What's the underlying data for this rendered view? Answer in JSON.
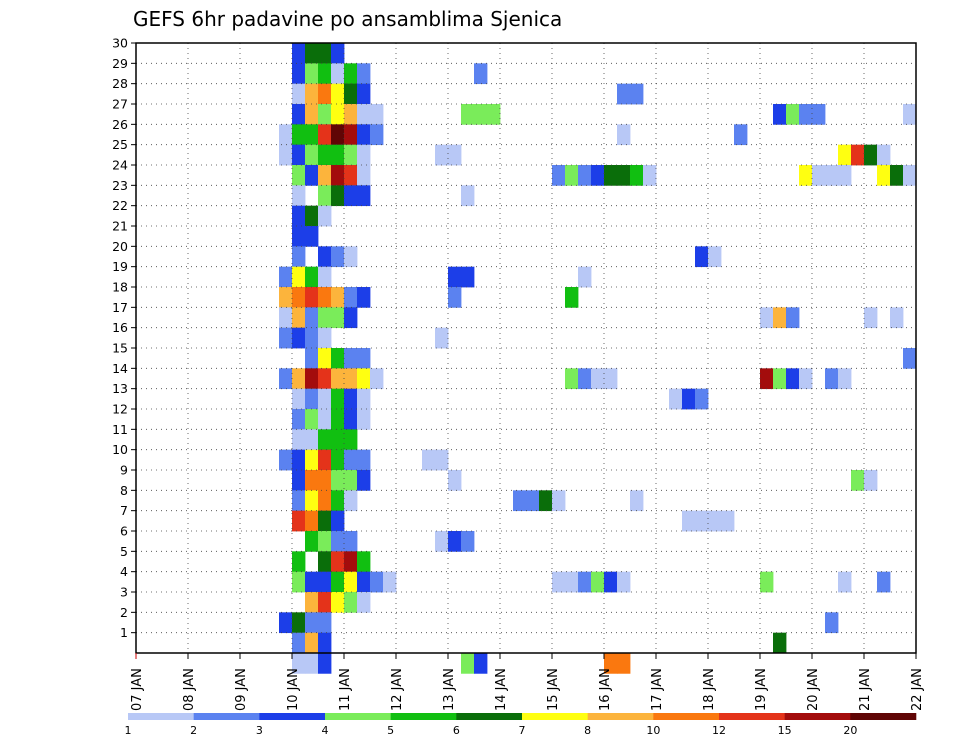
{
  "chart_data": {
    "type": "heatmap",
    "title": "GEFS 6hr padavine po ansamblima Sjenica",
    "x_tick_labels": [
      "07 JAN",
      "08 JAN",
      "09 JAN",
      "10 JAN",
      "11 JAN",
      "12 JAN",
      "13 JAN",
      "14 JAN",
      "15 JAN",
      "16 JAN",
      "17 JAN",
      "18 JAN",
      "19 JAN",
      "20 JAN",
      "21 JAN",
      "22 JAN"
    ],
    "y_tick_labels": [
      "1",
      "2",
      "3",
      "4",
      "5",
      "6",
      "7",
      "8",
      "9",
      "10",
      "11",
      "12",
      "13",
      "14",
      "15",
      "16",
      "17",
      "18",
      "19",
      "20",
      "21",
      "22",
      "23",
      "24",
      "25",
      "26",
      "27",
      "28",
      "29",
      "30"
    ],
    "xlim": [
      0,
      60
    ],
    "ylim": [
      0,
      30
    ],
    "grid": true,
    "colorbar": {
      "levels": [
        1,
        2,
        3,
        4,
        5,
        6,
        7,
        8,
        10,
        12,
        15,
        20
      ],
      "labels": [
        "1",
        "2",
        "3",
        "4",
        "5",
        "6",
        "7",
        "8",
        "10",
        "12",
        "15",
        "20"
      ],
      "colors": [
        "#b8c8f6",
        "#5b82f0",
        "#1c3ee8",
        "#7aec5a",
        "#11bf11",
        "#0a6e0a",
        "#ffff11",
        "#fcb43c",
        "#fa780f",
        "#e4331a",
        "#a30c0c",
        "#600505"
      ]
    },
    "cells": [
      [
        12,
        29,
        2
      ],
      [
        13,
        29,
        5
      ],
      [
        14,
        29,
        5
      ],
      [
        15,
        29,
        2
      ],
      [
        12,
        28,
        2
      ],
      [
        13,
        28,
        3
      ],
      [
        14,
        28,
        4
      ],
      [
        15,
        28,
        0
      ],
      [
        16,
        28,
        4
      ],
      [
        17,
        28,
        1
      ],
      [
        26,
        28,
        1
      ],
      [
        12,
        27,
        0
      ],
      [
        13,
        27,
        7
      ],
      [
        14,
        27,
        8
      ],
      [
        15,
        27,
        6
      ],
      [
        16,
        27,
        5
      ],
      [
        17,
        27,
        2
      ],
      [
        37,
        27,
        1
      ],
      [
        38,
        27,
        1
      ],
      [
        12,
        26,
        2
      ],
      [
        13,
        26,
        7
      ],
      [
        14,
        26,
        3
      ],
      [
        15,
        26,
        6
      ],
      [
        16,
        26,
        7
      ],
      [
        17,
        26,
        0
      ],
      [
        18,
        26,
        0
      ],
      [
        25,
        26,
        3
      ],
      [
        26,
        26,
        3
      ],
      [
        27,
        26,
        3
      ],
      [
        49,
        26,
        2
      ],
      [
        50,
        26,
        3
      ],
      [
        51,
        26,
        1
      ],
      [
        52,
        26,
        1
      ],
      [
        59,
        26,
        0
      ],
      [
        11,
        25,
        0
      ],
      [
        12,
        25,
        4
      ],
      [
        13,
        25,
        4
      ],
      [
        14,
        25,
        9
      ],
      [
        15,
        25,
        11
      ],
      [
        16,
        25,
        10
      ],
      [
        17,
        25,
        2
      ],
      [
        18,
        25,
        1
      ],
      [
        37,
        25,
        0
      ],
      [
        46,
        25,
        1
      ],
      [
        11,
        24,
        0
      ],
      [
        12,
        24,
        2
      ],
      [
        13,
        24,
        3
      ],
      [
        14,
        24,
        4
      ],
      [
        15,
        24,
        4
      ],
      [
        16,
        24,
        3
      ],
      [
        17,
        24,
        0
      ],
      [
        23,
        24,
        0
      ],
      [
        24,
        24,
        0
      ],
      [
        54,
        24,
        6
      ],
      [
        55,
        24,
        9
      ],
      [
        56,
        24,
        5
      ],
      [
        57,
        24,
        0
      ],
      [
        12,
        23,
        3
      ],
      [
        13,
        23,
        2
      ],
      [
        14,
        23,
        7
      ],
      [
        15,
        23,
        10
      ],
      [
        16,
        23,
        9
      ],
      [
        17,
        23,
        0
      ],
      [
        32,
        23,
        1
      ],
      [
        33,
        23,
        3
      ],
      [
        34,
        23,
        1
      ],
      [
        35,
        23,
        2
      ],
      [
        36,
        23,
        5
      ],
      [
        37,
        23,
        5
      ],
      [
        38,
        23,
        4
      ],
      [
        39,
        23,
        0
      ],
      [
        51,
        23,
        6
      ],
      [
        52,
        23,
        0
      ],
      [
        53,
        23,
        0
      ],
      [
        54,
        23,
        0
      ],
      [
        57,
        23,
        6
      ],
      [
        58,
        23,
        5
      ],
      [
        59,
        23,
        0
      ],
      [
        12,
        22,
        0
      ],
      [
        14,
        22,
        3
      ],
      [
        15,
        22,
        5
      ],
      [
        16,
        22,
        2
      ],
      [
        17,
        22,
        2
      ],
      [
        25,
        22,
        0
      ],
      [
        12,
        21,
        2
      ],
      [
        13,
        21,
        5
      ],
      [
        14,
        21,
        0
      ],
      [
        12,
        20,
        2
      ],
      [
        13,
        20,
        2
      ],
      [
        12,
        19,
        1
      ],
      [
        14,
        19,
        2
      ],
      [
        15,
        19,
        1
      ],
      [
        16,
        19,
        0
      ],
      [
        43,
        19,
        2
      ],
      [
        44,
        19,
        0
      ],
      [
        11,
        18,
        1
      ],
      [
        12,
        18,
        6
      ],
      [
        13,
        18,
        4
      ],
      [
        14,
        18,
        0
      ],
      [
        24,
        18,
        2
      ],
      [
        25,
        18,
        2
      ],
      [
        34,
        18,
        0
      ],
      [
        11,
        17,
        7
      ],
      [
        12,
        17,
        8
      ],
      [
        13,
        17,
        9
      ],
      [
        14,
        17,
        8
      ],
      [
        15,
        17,
        7
      ],
      [
        16,
        17,
        1
      ],
      [
        17,
        17,
        2
      ],
      [
        24,
        17,
        1
      ],
      [
        33,
        17,
        4
      ],
      [
        11,
        16,
        0
      ],
      [
        12,
        16,
        7
      ],
      [
        13,
        16,
        1
      ],
      [
        14,
        16,
        3
      ],
      [
        15,
        16,
        3
      ],
      [
        16,
        16,
        2
      ],
      [
        48,
        16,
        0
      ],
      [
        49,
        16,
        7
      ],
      [
        50,
        16,
        1
      ],
      [
        56,
        16,
        0
      ],
      [
        58,
        16,
        0
      ],
      [
        11,
        15,
        1
      ],
      [
        12,
        15,
        2
      ],
      [
        13,
        15,
        1
      ],
      [
        14,
        15,
        0
      ],
      [
        23,
        15,
        0
      ],
      [
        13,
        14,
        1
      ],
      [
        14,
        14,
        6
      ],
      [
        15,
        14,
        4
      ],
      [
        16,
        14,
        1
      ],
      [
        17,
        14,
        1
      ],
      [
        59,
        14,
        1
      ],
      [
        11,
        13,
        1
      ],
      [
        12,
        13,
        7
      ],
      [
        13,
        13,
        10
      ],
      [
        14,
        13,
        9
      ],
      [
        15,
        13,
        7
      ],
      [
        16,
        13,
        7
      ],
      [
        17,
        13,
        6
      ],
      [
        18,
        13,
        0
      ],
      [
        33,
        13,
        3
      ],
      [
        34,
        13,
        1
      ],
      [
        35,
        13,
        0
      ],
      [
        36,
        13,
        0
      ],
      [
        48,
        13,
        10
      ],
      [
        49,
        13,
        3
      ],
      [
        50,
        13,
        2
      ],
      [
        51,
        13,
        0
      ],
      [
        53,
        13,
        1
      ],
      [
        54,
        13,
        0
      ],
      [
        12,
        12,
        0
      ],
      [
        13,
        12,
        1
      ],
      [
        14,
        12,
        0
      ],
      [
        15,
        12,
        4
      ],
      [
        16,
        12,
        2
      ],
      [
        17,
        12,
        0
      ],
      [
        41,
        12,
        0
      ],
      [
        42,
        12,
        2
      ],
      [
        43,
        12,
        1
      ],
      [
        12,
        11,
        1
      ],
      [
        13,
        11,
        3
      ],
      [
        14,
        11,
        0
      ],
      [
        15,
        11,
        4
      ],
      [
        16,
        11,
        2
      ],
      [
        17,
        11,
        0
      ],
      [
        12,
        10,
        0
      ],
      [
        13,
        10,
        0
      ],
      [
        14,
        10,
        4
      ],
      [
        15,
        10,
        4
      ],
      [
        16,
        10,
        4
      ],
      [
        11,
        9,
        1
      ],
      [
        12,
        9,
        2
      ],
      [
        13,
        9,
        6
      ],
      [
        14,
        9,
        9
      ],
      [
        15,
        9,
        4
      ],
      [
        16,
        9,
        1
      ],
      [
        17,
        9,
        1
      ],
      [
        22,
        9,
        0
      ],
      [
        23,
        9,
        0
      ],
      [
        12,
        8,
        2
      ],
      [
        13,
        8,
        8
      ],
      [
        14,
        8,
        8
      ],
      [
        15,
        8,
        3
      ],
      [
        16,
        8,
        3
      ],
      [
        17,
        8,
        2
      ],
      [
        24,
        8,
        0
      ],
      [
        55,
        8,
        3
      ],
      [
        56,
        8,
        0
      ],
      [
        12,
        7,
        1
      ],
      [
        13,
        7,
        6
      ],
      [
        14,
        7,
        8
      ],
      [
        15,
        7,
        4
      ],
      [
        16,
        7,
        0
      ],
      [
        29,
        7,
        1
      ],
      [
        30,
        7,
        1
      ],
      [
        31,
        7,
        5
      ],
      [
        32,
        7,
        0
      ],
      [
        38,
        7,
        0
      ],
      [
        12,
        6,
        9
      ],
      [
        13,
        6,
        8
      ],
      [
        14,
        6,
        5
      ],
      [
        15,
        6,
        2
      ],
      [
        42,
        6,
        0
      ],
      [
        43,
        6,
        0
      ],
      [
        44,
        6,
        0
      ],
      [
        45,
        6,
        0
      ],
      [
        13,
        5,
        4
      ],
      [
        14,
        5,
        3
      ],
      [
        15,
        5,
        1
      ],
      [
        16,
        5,
        1
      ],
      [
        23,
        5,
        0
      ],
      [
        24,
        5,
        2
      ],
      [
        25,
        5,
        1
      ],
      [
        12,
        4,
        4
      ],
      [
        14,
        4,
        5
      ],
      [
        15,
        4,
        9
      ],
      [
        16,
        4,
        10
      ],
      [
        17,
        4,
        4
      ],
      [
        12,
        3,
        3
      ],
      [
        13,
        3,
        2
      ],
      [
        14,
        3,
        2
      ],
      [
        15,
        3,
        4
      ],
      [
        16,
        3,
        6
      ],
      [
        17,
        3,
        2
      ],
      [
        18,
        3,
        1
      ],
      [
        19,
        3,
        0
      ],
      [
        32,
        3,
        0
      ],
      [
        33,
        3,
        0
      ],
      [
        34,
        3,
        1
      ],
      [
        35,
        3,
        3
      ],
      [
        36,
        3,
        2
      ],
      [
        37,
        3,
        0
      ],
      [
        48,
        3,
        3
      ],
      [
        54,
        3,
        0
      ],
      [
        57,
        3,
        1
      ],
      [
        13,
        2,
        7
      ],
      [
        14,
        2,
        9
      ],
      [
        15,
        2,
        6
      ],
      [
        16,
        2,
        3
      ],
      [
        17,
        2,
        0
      ],
      [
        11,
        1,
        2
      ],
      [
        12,
        1,
        5
      ],
      [
        13,
        1,
        1
      ],
      [
        14,
        1,
        1
      ],
      [
        53,
        1,
        1
      ],
      [
        12,
        0,
        1
      ],
      [
        13,
        0,
        7
      ],
      [
        14,
        0,
        2
      ],
      [
        49,
        0,
        5
      ],
      [
        12,
        -1,
        0
      ],
      [
        13,
        -1,
        0
      ],
      [
        14,
        -1,
        2
      ],
      [
        25,
        -1,
        3
      ],
      [
        26,
        -1,
        2
      ],
      [
        36,
        -1,
        8
      ],
      [
        37,
        -1,
        8
      ]
    ]
  }
}
